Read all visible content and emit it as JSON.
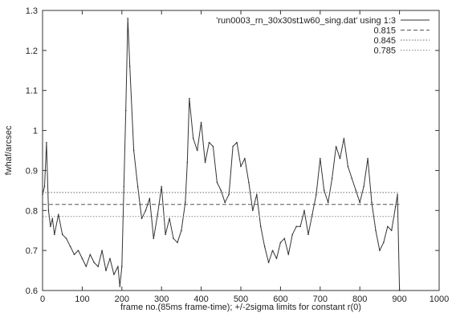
{
  "chart_data": {
    "type": "line",
    "title": "",
    "xlabel": "frame no.(85ms frame-time); +/-2sigma limits for constant r(0)",
    "ylabel": "fwhaf/arcsec",
    "xlim": [
      0,
      1000
    ],
    "ylim": [
      0.6,
      1.3
    ],
    "x_ticks": [
      0,
      100,
      200,
      300,
      400,
      500,
      600,
      700,
      800,
      900,
      1000
    ],
    "y_ticks": [
      0.6,
      0.7,
      0.8,
      0.9,
      1.0,
      1.1,
      1.2,
      1.3
    ],
    "x_tick_labels": [
      "0",
      "100",
      "200",
      "300",
      "400",
      "500",
      "600",
      "700",
      "800",
      "900",
      "1000"
    ],
    "y_tick_labels": [
      "0.6",
      "0.7",
      "0.8",
      "0.9",
      "1",
      "1.1",
      "1.2",
      "1.3"
    ],
    "grid": false,
    "legend_position": "top-right",
    "series": [
      {
        "name": "'run0003_rn_30x30st1w60_sing.dat' using 1:3",
        "style": "solid",
        "color": "#333333",
        "x": [
          0,
          5,
          10,
          15,
          20,
          25,
          30,
          40,
          50,
          60,
          70,
          80,
          90,
          100,
          110,
          120,
          130,
          140,
          150,
          160,
          170,
          180,
          190,
          195,
          200,
          205,
          210,
          215,
          220,
          230,
          240,
          250,
          260,
          270,
          280,
          290,
          300,
          310,
          320,
          330,
          340,
          350,
          360,
          365,
          370,
          380,
          390,
          400,
          410,
          420,
          430,
          440,
          450,
          460,
          470,
          480,
          490,
          500,
          510,
          520,
          530,
          540,
          550,
          560,
          570,
          580,
          590,
          600,
          610,
          620,
          630,
          640,
          650,
          660,
          670,
          680,
          690,
          700,
          710,
          720,
          730,
          740,
          750,
          760,
          770,
          780,
          790,
          800,
          810,
          820,
          830,
          840,
          850,
          860,
          870,
          880,
          890,
          895,
          900
        ],
        "values": [
          0.84,
          0.86,
          0.97,
          0.8,
          0.76,
          0.78,
          0.74,
          0.79,
          0.74,
          0.73,
          0.71,
          0.69,
          0.7,
          0.68,
          0.66,
          0.69,
          0.67,
          0.66,
          0.7,
          0.65,
          0.68,
          0.64,
          0.66,
          0.61,
          0.66,
          0.86,
          1.05,
          1.28,
          1.16,
          0.95,
          0.86,
          0.78,
          0.8,
          0.83,
          0.73,
          0.79,
          0.86,
          0.74,
          0.78,
          0.73,
          0.72,
          0.75,
          0.82,
          0.92,
          1.08,
          0.98,
          0.95,
          1.02,
          0.92,
          0.97,
          0.96,
          0.87,
          0.85,
          0.82,
          0.84,
          0.96,
          0.97,
          0.91,
          0.93,
          0.87,
          0.8,
          0.84,
          0.76,
          0.71,
          0.67,
          0.7,
          0.68,
          0.72,
          0.73,
          0.69,
          0.74,
          0.76,
          0.76,
          0.8,
          0.74,
          0.79,
          0.84,
          0.93,
          0.85,
          0.82,
          0.88,
          0.96,
          0.93,
          0.98,
          0.91,
          0.88,
          0.85,
          0.82,
          0.86,
          0.93,
          0.82,
          0.75,
          0.7,
          0.72,
          0.76,
          0.75,
          0.81,
          0.84,
          0.6
        ]
      },
      {
        "name": "0.815",
        "style": "dashed",
        "color": "#555555",
        "constant": 0.815,
        "x_range": [
          0,
          900
        ]
      },
      {
        "name": "0.845",
        "style": "dotted",
        "color": "#666666",
        "constant": 0.845,
        "x_range": [
          0,
          900
        ]
      },
      {
        "name": "0.785",
        "style": "dotted",
        "color": "#888888",
        "constant": 0.785,
        "x_range": [
          0,
          900
        ]
      }
    ]
  }
}
